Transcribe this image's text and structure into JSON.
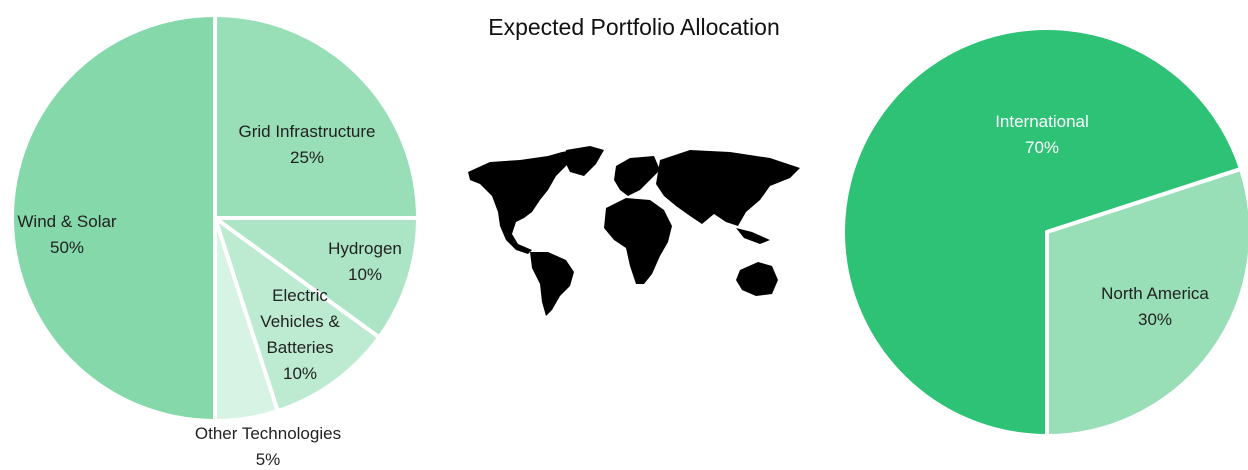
{
  "title": "Expected Portfolio Allocation",
  "chart_data": [
    {
      "type": "pie",
      "categories": [
        "Grid Infrastructure",
        "Hydrogen",
        "Electric Vehicles & Batteries",
        "Other Technologies",
        "Wind & Solar"
      ],
      "values": [
        25,
        10,
        10,
        5,
        50
      ],
      "value_labels": [
        "25%",
        "10%",
        "10%",
        "5%",
        "50%"
      ],
      "colors": [
        "#98dfb8",
        "#ace5c6",
        "#bdebd1",
        "#d7f3e3",
        "#84d8aa"
      ],
      "startangle": 0
    },
    {
      "type": "pie",
      "categories": [
        "International",
        "North America"
      ],
      "values": [
        70,
        30
      ],
      "value_labels": [
        "70%",
        "30%"
      ],
      "colors": [
        "#2dc275",
        "#98dfb8"
      ],
      "startangle": 180
    }
  ]
}
